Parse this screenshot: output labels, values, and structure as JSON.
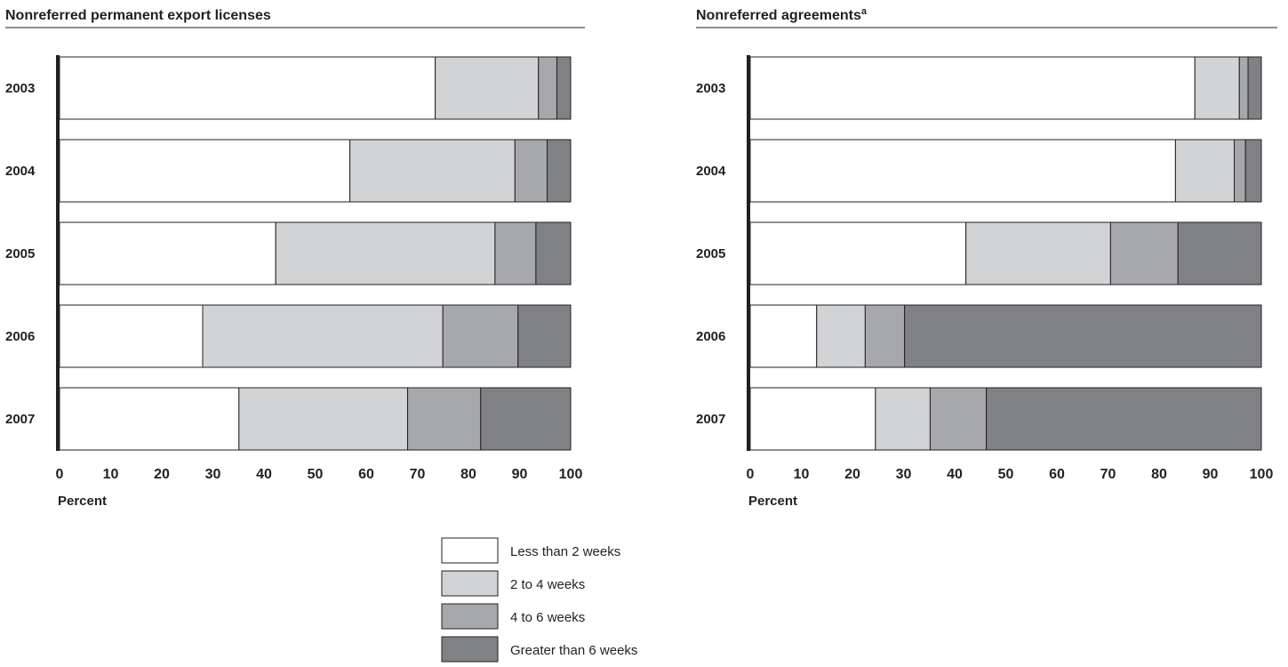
{
  "colors": {
    "less_than_2_weeks": "#ffffff",
    "2_to_4_weeks": "#d2d3d4",
    "4_to_6_weeks": "#a7a8ab",
    "greater_than_6_weeks": "#808184",
    "ink": "#231f20"
  },
  "legend": {
    "items": [
      {
        "label": "Less than 2 weeks",
        "color_key": "less_than_2_weeks"
      },
      {
        "label": "2 to 4 weeks",
        "color_key": "2_to_4_weeks"
      },
      {
        "label": "4 to 6 weeks",
        "color_key": "4_to_6_weeks"
      },
      {
        "label": "Greater than 6 weeks",
        "color_key": "greater_than_6_weeks"
      }
    ]
  },
  "chart_data": [
    {
      "type": "bar",
      "orientation": "horizontal",
      "stacked": true,
      "title": "Nonreferred permanent export licenses",
      "title_superscript": "",
      "xlabel": "Percent",
      "ylabel": "",
      "xlim": [
        0,
        100
      ],
      "xticks": [
        0,
        10,
        20,
        30,
        40,
        50,
        60,
        70,
        80,
        90,
        100
      ],
      "categories": [
        "2003",
        "2004",
        "2005",
        "2006",
        "2007"
      ],
      "series": [
        {
          "name": "Less than 2 weeks",
          "values": [
            73.5,
            56.8,
            42.3,
            28.0,
            35.1
          ]
        },
        {
          "name": "2 to 4 weeks",
          "values": [
            20.2,
            32.3,
            42.9,
            47.0,
            33.0
          ]
        },
        {
          "name": "4 to 6 weeks",
          "values": [
            3.6,
            6.3,
            8.0,
            14.7,
            14.3
          ]
        },
        {
          "name": "Greater than 6 weeks",
          "values": [
            2.7,
            4.6,
            6.8,
            10.3,
            17.6
          ]
        }
      ],
      "grid": false,
      "legend_position": "bottom"
    },
    {
      "type": "bar",
      "orientation": "horizontal",
      "stacked": true,
      "title": "Nonreferred agreements",
      "title_superscript": "a",
      "xlabel": "Percent",
      "ylabel": "",
      "xlim": [
        0,
        100
      ],
      "xticks": [
        0,
        10,
        20,
        30,
        40,
        50,
        60,
        70,
        80,
        90,
        100
      ],
      "categories": [
        "2003",
        "2004",
        "2005",
        "2006",
        "2007"
      ],
      "series": [
        {
          "name": "Less than 2 weeks",
          "values": [
            87.0,
            83.2,
            42.2,
            13.0,
            24.5
          ]
        },
        {
          "name": "2 to 4 weeks",
          "values": [
            8.7,
            11.5,
            28.3,
            9.5,
            10.7
          ]
        },
        {
          "name": "4 to 6 weeks",
          "values": [
            1.7,
            2.2,
            13.2,
            7.7,
            11.0
          ]
        },
        {
          "name": "Greater than 6 weeks",
          "values": [
            2.6,
            3.1,
            16.3,
            69.8,
            53.8
          ]
        }
      ],
      "grid": false,
      "legend_position": "bottom"
    }
  ]
}
